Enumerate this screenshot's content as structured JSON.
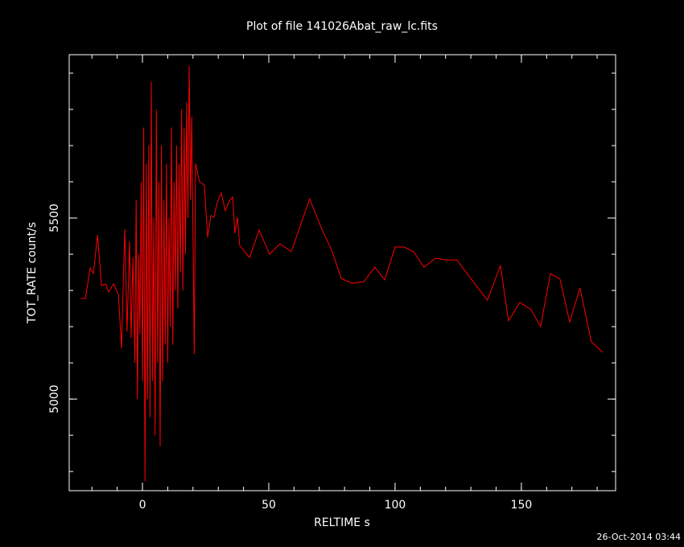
{
  "chart_data": {
    "type": "line",
    "title": "Plot of file 141026Abat_raw_lc.fits",
    "x_label": "RELTIME  s",
    "y_label": "TOT_RATE  count/s",
    "timestamp": "26-Oct-2014 03:44",
    "color": "#ff0000",
    "xlim": [
      -29,
      187.3
    ],
    "ylim": [
      4747,
      5951
    ],
    "xticks": [
      0,
      50,
      100,
      150
    ],
    "yticks": [
      5000,
      5500
    ],
    "x_minor_step": 10,
    "y_minor_step": 100,
    "x": [
      -24.5,
      -22.6,
      -20.7,
      -19.4,
      -17.8,
      -16.2,
      -14.6,
      -13.4,
      -11.5,
      -9.5,
      -8.3,
      -7.0,
      -6.1,
      -5.1,
      -4.5,
      -3.8,
      -3,
      -2.5,
      -2,
      -1.5,
      -1,
      -0.5,
      0,
      0.5,
      1,
      1.5,
      2,
      2.5,
      3,
      3.5,
      4,
      4.5,
      5,
      5.5,
      6,
      6.5,
      7,
      7.5,
      8,
      8.5,
      9,
      9.5,
      10,
      10.5,
      11,
      11.5,
      12,
      12.5,
      13,
      13.5,
      14,
      14.5,
      15,
      15.5,
      16,
      16.5,
      17,
      17.5,
      18,
      18.5,
      19,
      19.5,
      20,
      20.5,
      21,
      22.6,
      24.5,
      25.8,
      27.1,
      28.3,
      29.6,
      31.2,
      32.8,
      34.4,
      35.7,
      36.6,
      37.6,
      38.5,
      42.4,
      46.2,
      50.3,
      54.5,
      58.9,
      66.2,
      71,
      74.8,
      78.7,
      83.1,
      87.6,
      92,
      95.9,
      100,
      103.5,
      107.3,
      111.5,
      115.9,
      120.4,
      124.5,
      129,
      132.8,
      136.6,
      141.7,
      144.9,
      149.4,
      153.8,
      157.6,
      161.5,
      165.3,
      169.1,
      173.2,
      177.7,
      182.2
    ],
    "values": [
      5278,
      5278,
      5362,
      5347,
      5453,
      5313,
      5318,
      5296,
      5318,
      5289,
      5140,
      5469,
      5187,
      5436,
      5169,
      5391,
      5100,
      5550,
      5000,
      5400,
      5180,
      5600,
      5050,
      5750,
      4773,
      5650,
      5000,
      5700,
      4950,
      5876,
      5050,
      5500,
      4900,
      5800,
      5100,
      5600,
      4869,
      5700,
      5050,
      5550,
      5150,
      5650,
      5100,
      5500,
      5200,
      5750,
      5150,
      5600,
      5300,
      5700,
      5250,
      5650,
      5350,
      5800,
      5300,
      5750,
      5400,
      5820,
      5500,
      5920,
      5550,
      5780,
      5450,
      5124,
      5650,
      5600,
      5591,
      5447,
      5507,
      5502,
      5542,
      5569,
      5520,
      5547,
      5558,
      5458,
      5502,
      5424,
      5391,
      5467,
      5400,
      5429,
      5407,
      5553,
      5469,
      5413,
      5333,
      5320,
      5324,
      5364,
      5329,
      5420,
      5420,
      5407,
      5364,
      5389,
      5384,
      5384,
      5342,
      5307,
      5273,
      5369,
      5216,
      5267,
      5247,
      5200,
      5347,
      5331,
      5213,
      5307,
      5158,
      5129
    ]
  }
}
